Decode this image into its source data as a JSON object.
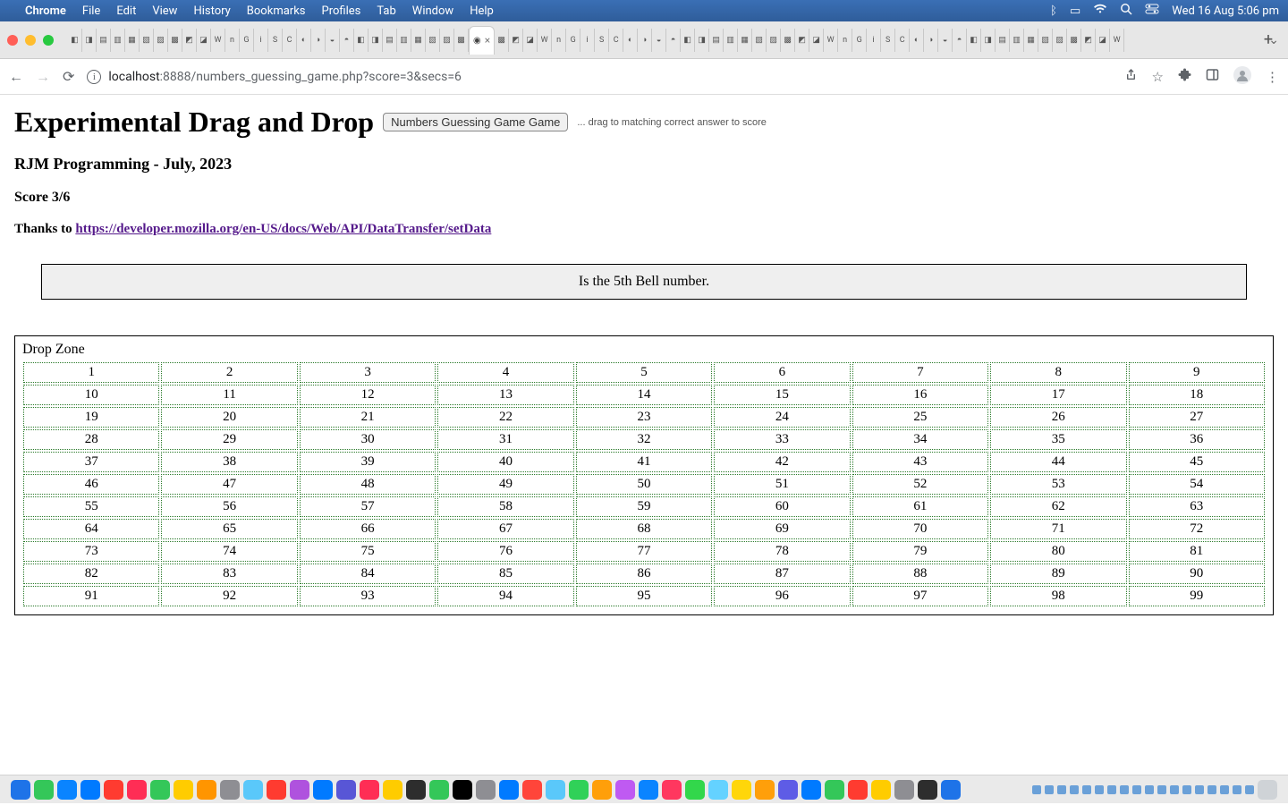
{
  "menubar": {
    "apple": "",
    "appname": "Chrome",
    "items": [
      "File",
      "Edit",
      "View",
      "History",
      "Bookmarks",
      "Profiles",
      "Tab",
      "Window",
      "Help"
    ],
    "right_icons": [
      "bluetooth",
      "battery",
      "wifi",
      "search",
      "control-center"
    ],
    "clock": "Wed 16 Aug  5:06 pm"
  },
  "browser": {
    "url_host": "localhost",
    "url_port": ":8888",
    "url_path": "/numbers_guessing_game.php?score=3&secs=6",
    "active_tab_close": "×",
    "new_tab": "+"
  },
  "page": {
    "title": "Experimental Drag and Drop",
    "button_label": "Numbers Guessing Game Game",
    "button_hint": "... drag to matching correct answer to score",
    "byline": "RJM Programming - July, 2023",
    "score": "Score 3/6",
    "thanks_prefix": "Thanks to ",
    "thanks_link_text": "https://developer.mozilla.org/en-US/docs/Web/API/DataTransfer/setData",
    "question": "Is the 5th Bell number.",
    "dropzone_label": "Drop Zone",
    "grid": {
      "cols": 9,
      "start": 1,
      "end": 99,
      "cell_border_color": "#2a7a2a",
      "cell_border_style": "dotted"
    }
  },
  "colors": {
    "menubar_bg_top": "#3a6fb5",
    "menubar_bg_bottom": "#2f5d9a",
    "link_visited": "#551a8b",
    "question_bg": "#efefef"
  },
  "dock": {
    "left_icons": [
      "#1e73e8",
      "#34c759",
      "#0a84ff",
      "#007aff",
      "#ff3b30",
      "#ff2d55",
      "#34c759",
      "#ffcc00",
      "#ff9500",
      "#8e8e93",
      "#5ac8fa",
      "#ff3b30",
      "#af52de",
      "#007aff",
      "#5856d6",
      "#ff2d55",
      "#ffcc00",
      "#2d2d2d",
      "#34c759",
      "#000000",
      "#8e8e93",
      "#007aff",
      "#ff453a",
      "#5ac8fa",
      "#30d158",
      "#ff9f0a",
      "#bf5af2",
      "#0a84ff",
      "#ff375f",
      "#32d74b",
      "#64d2ff",
      "#ffd60a",
      "#ff9f0a",
      "#5e5ce6",
      "#007aff",
      "#34c759",
      "#ff3b30",
      "#ffcc00",
      "#8e8e93",
      "#2d2d2d",
      "#1e73e8"
    ],
    "right_tiny_count": 18
  }
}
